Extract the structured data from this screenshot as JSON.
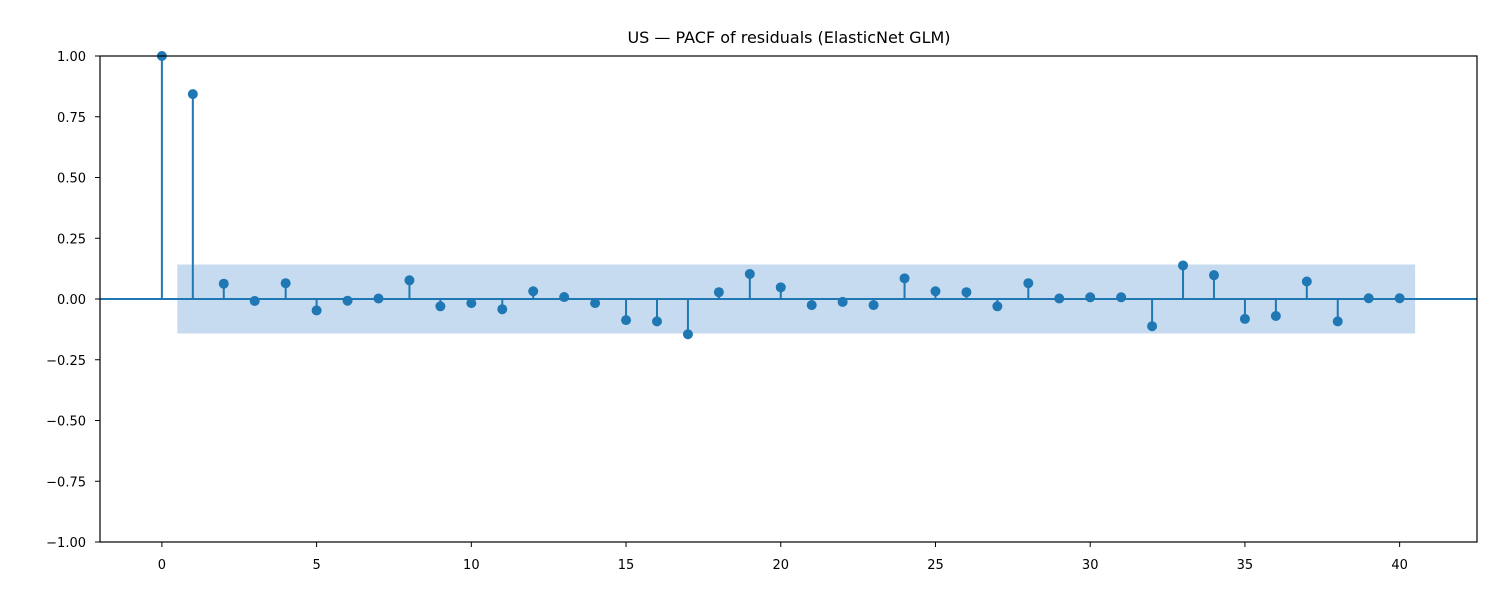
{
  "chart_data": {
    "type": "stem",
    "title": "US — PACF of residuals (ElasticNet GLM)",
    "xlabel": "",
    "ylabel": "",
    "xlim": [
      -2,
      42.5
    ],
    "ylim": [
      -1.0,
      1.0
    ],
    "xticks": [
      "0",
      "5",
      "10",
      "15",
      "20",
      "25",
      "30",
      "35",
      "40"
    ],
    "yticks": [
      "1.00",
      "0.75",
      "0.50",
      "0.25",
      "0.00",
      "−0.25",
      "−0.50",
      "−0.75",
      "−1.00"
    ],
    "confidence_band": {
      "lower": -0.142,
      "upper": 0.142,
      "x_start": 0.5,
      "x_end": 40.5
    },
    "lags": [
      0,
      1,
      2,
      3,
      4,
      5,
      6,
      7,
      8,
      9,
      10,
      11,
      12,
      13,
      14,
      15,
      16,
      17,
      18,
      19,
      20,
      21,
      22,
      23,
      24,
      25,
      26,
      27,
      28,
      29,
      30,
      31,
      32,
      33,
      34,
      35,
      36,
      37,
      38,
      39,
      40
    ],
    "values": [
      1.0,
      0.843,
      0.063,
      -0.008,
      0.065,
      -0.047,
      -0.007,
      0.002,
      0.077,
      -0.03,
      -0.017,
      -0.042,
      0.032,
      0.008,
      -0.017,
      -0.087,
      -0.092,
      -0.145,
      0.028,
      0.103,
      0.048,
      -0.025,
      -0.012,
      -0.025,
      0.085,
      0.032,
      0.028,
      -0.03,
      0.065,
      0.002,
      0.007,
      0.007,
      -0.112,
      0.138,
      0.098,
      -0.082,
      -0.07,
      0.072,
      -0.092,
      0.003,
      0.003
    ],
    "grid": false,
    "colors": {
      "stem": "#1f77b4",
      "band": "#c6dbef"
    }
  }
}
